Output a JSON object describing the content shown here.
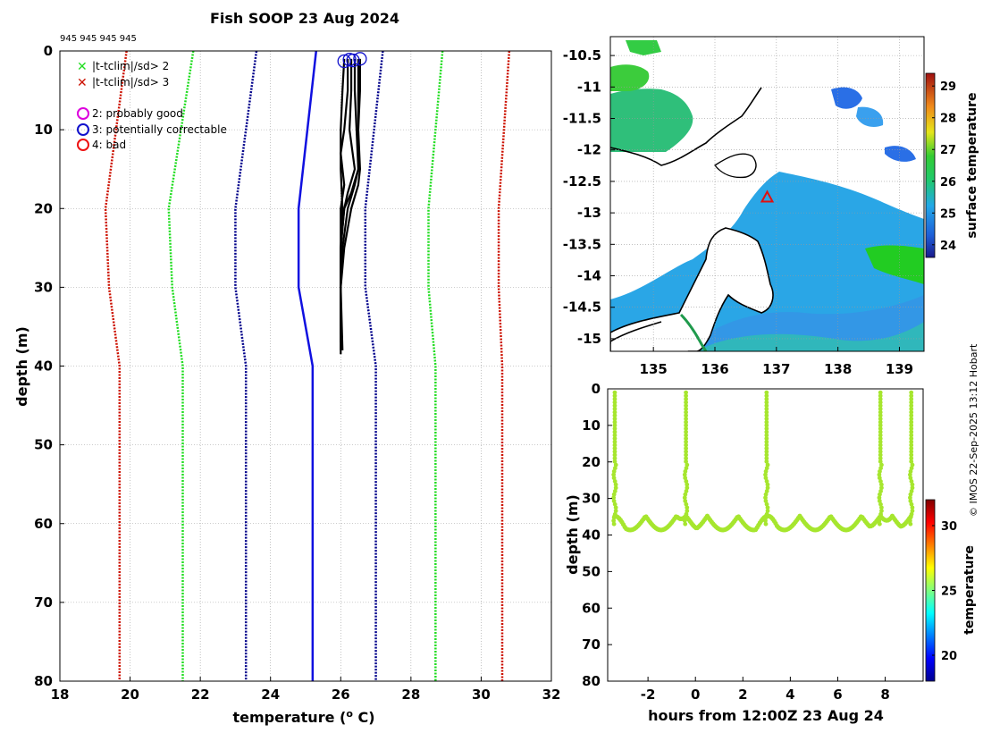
{
  "title": "Fish SOOP 23 Aug 2024",
  "flag_ids": "945 945 945 945",
  "credit": "© IMOS 22-Sep-2025 13:12 Hobart",
  "legend": {
    "x_green": "|t-tclim|/sd> 2",
    "x_red": "|t-tclim|/sd> 3",
    "flag2": "2: probably good",
    "flag3": "3: potentially correctable",
    "flag4": "4: bad"
  },
  "colors": {
    "clim_mean": "#1010e0",
    "sd1": "#00008b",
    "sd2": "#22dd22",
    "sd3": "#cc1100",
    "profiles": "#000000",
    "flag2": "#dd00dd",
    "flag3": "#1111cc",
    "flag4": "#ee1111",
    "land": "#ffffff",
    "section_points": "#a6e62e"
  },
  "chart_data": [
    {
      "id": "profile_panel",
      "type": "line",
      "xlabel": "temperature (° C)",
      "xlabel_parts": [
        "temperature (",
        "o",
        " C)"
      ],
      "ylabel": "depth (m)",
      "xlim": [
        18,
        32
      ],
      "ylim": [
        0,
        80
      ],
      "xticks": [
        18,
        20,
        22,
        24,
        26,
        28,
        30,
        32
      ],
      "yticks": [
        0,
        10,
        20,
        30,
        40,
        50,
        60,
        70,
        80
      ],
      "climatology": {
        "depth": [
          0,
          20,
          30,
          40,
          80
        ],
        "mean": [
          25.3,
          24.8,
          24.8,
          25.2,
          25.2
        ],
        "minus1sd": [
          23.6,
          23.0,
          23.0,
          23.3,
          23.3
        ],
        "plus1sd": [
          27.2,
          26.7,
          26.7,
          27.0,
          27.0
        ],
        "minus2sd": [
          21.8,
          21.1,
          21.2,
          21.5,
          21.5
        ],
        "plus2sd": [
          28.9,
          28.5,
          28.5,
          28.7,
          28.7
        ],
        "minus3sd": [
          19.9,
          19.3,
          19.4,
          19.7,
          19.7
        ],
        "plus3sd": [
          30.8,
          30.5,
          30.5,
          30.6,
          30.6
        ]
      },
      "profiles": [
        {
          "depth": [
            1,
            5,
            10,
            15,
            20,
            25,
            30,
            35,
            38.5
          ],
          "temp": [
            26.1,
            26.05,
            26.0,
            26.0,
            26.05,
            26.0,
            26.0,
            26.0,
            26.0
          ]
        },
        {
          "depth": [
            1,
            5,
            10,
            13,
            17,
            20,
            25,
            30,
            35,
            38
          ],
          "temp": [
            26.2,
            26.2,
            26.1,
            26.0,
            26.1,
            26.0,
            26.0,
            26.0,
            26.0,
            26.0
          ]
        },
        {
          "depth": [
            1,
            5,
            10,
            15,
            18,
            20,
            25,
            30,
            36
          ],
          "temp": [
            26.3,
            26.3,
            26.25,
            26.4,
            26.2,
            26.1,
            26.0,
            26.0,
            26.0
          ]
        },
        {
          "depth": [
            1,
            5,
            10,
            15,
            18,
            20,
            25,
            30,
            35
          ],
          "temp": [
            26.4,
            26.4,
            26.45,
            26.5,
            26.3,
            26.1,
            26.0,
            26.0,
            26.0
          ]
        },
        {
          "depth": [
            1,
            5,
            10,
            15,
            17,
            20,
            25,
            30,
            37
          ],
          "temp": [
            26.5,
            26.5,
            26.5,
            26.5,
            26.4,
            26.2,
            26.05,
            26.0,
            26.0
          ]
        },
        {
          "depth": [
            1,
            5,
            10,
            15,
            17,
            20,
            25,
            30,
            38
          ],
          "temp": [
            26.55,
            26.55,
            26.5,
            26.55,
            26.5,
            26.3,
            26.1,
            26.0,
            26.05
          ]
        }
      ],
      "flag_markers": {
        "flag": 3,
        "depth": [
          1.3,
          1.1,
          1.2,
          1.0
        ],
        "temp": [
          26.1,
          26.25,
          26.35,
          26.55
        ]
      }
    },
    {
      "id": "sst_map",
      "type": "heatmap",
      "colorbar_label": "surface temperature",
      "lon_range": [
        134.3,
        139.4
      ],
      "lat_range": [
        -15.2,
        -10.2
      ],
      "xticks": [
        135,
        136,
        137,
        138,
        139
      ],
      "yticks": [
        -10.5,
        -11,
        -11.5,
        -12,
        -12.5,
        -13,
        -13.5,
        -14,
        -14.5,
        -15
      ],
      "colorbar_range": [
        23.6,
        29.4
      ],
      "colorbar_ticks": [
        24,
        25,
        26,
        27,
        28,
        29
      ],
      "profile_location": {
        "lon": 136.85,
        "lat": -12.75,
        "marker": "triangle"
      }
    },
    {
      "id": "depth_time_section",
      "type": "scatter",
      "xlabel": "hours from 12:00Z 23 Aug 24",
      "ylabel": "depth (m)",
      "xlim": [
        -3.7,
        9.6
      ],
      "ylim": [
        0,
        80
      ],
      "xticks": [
        -2,
        0,
        2,
        4,
        6,
        8
      ],
      "yticks": [
        0,
        10,
        20,
        30,
        40,
        50,
        60,
        70,
        80
      ],
      "colorbar_label": "temperature",
      "colorbar_range": [
        18,
        32
      ],
      "colorbar_ticks": [
        20,
        25,
        30
      ],
      "profile_hours": [
        -3.4,
        -0.4,
        3.0,
        7.8,
        9.1
      ],
      "tow_depth_min": 34.5,
      "tow_depth_max": 39.0,
      "temperature_typical": 26.0
    }
  ]
}
